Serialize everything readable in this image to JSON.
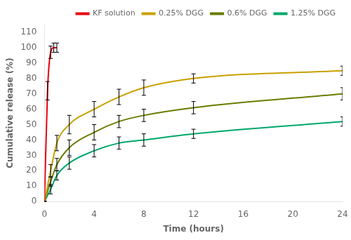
{
  "chart_data": {
    "type": "line",
    "xlabel": "Time (hours)",
    "ylabel": "Cumulative release (%)",
    "xlim": [
      0,
      24
    ],
    "ylim": [
      0,
      115
    ],
    "xticks": [
      0,
      4,
      8,
      12,
      16,
      20,
      24
    ],
    "yticks": [
      0,
      10,
      20,
      30,
      40,
      50,
      60,
      70,
      80,
      90,
      100,
      110
    ],
    "grid": false,
    "legend": "upper right",
    "series": [
      {
        "name": "KF solution",
        "color": "#e8000d",
        "x": [
          0,
          0.25,
          0.5,
          0.75,
          1.0
        ],
        "values": [
          0,
          72,
          97,
          100,
          100
        ],
        "yerr": [
          0,
          6,
          4,
          3,
          3
        ]
      },
      {
        "name": "0.25% DGG",
        "color": "#c8a000",
        "x": [
          0,
          0.5,
          1,
          2,
          4,
          6,
          8,
          12,
          24
        ],
        "values": [
          0,
          20,
          38,
          50,
          60,
          68,
          74,
          80,
          85
        ],
        "yerr": [
          0,
          4,
          5,
          6,
          5,
          5,
          5,
          3,
          3
        ]
      },
      {
        "name": "0.6% DGG",
        "color": "#6b7c00",
        "x": [
          0,
          0.5,
          1,
          2,
          4,
          6,
          8,
          12,
          24
        ],
        "values": [
          0,
          13,
          24,
          35,
          45,
          52,
          56,
          61,
          70
        ],
        "yerr": [
          0,
          3,
          4,
          5,
          5,
          4,
          4,
          4,
          4
        ]
      },
      {
        "name": "1.25% DGG",
        "color": "#00a86b",
        "x": [
          0,
          0.5,
          1,
          2,
          4,
          6,
          8,
          12,
          24
        ],
        "values": [
          0,
          8,
          17,
          25,
          33,
          38,
          40,
          44,
          52
        ],
        "yerr": [
          0,
          3,
          3,
          4,
          4,
          4,
          4,
          3,
          3
        ]
      }
    ]
  }
}
